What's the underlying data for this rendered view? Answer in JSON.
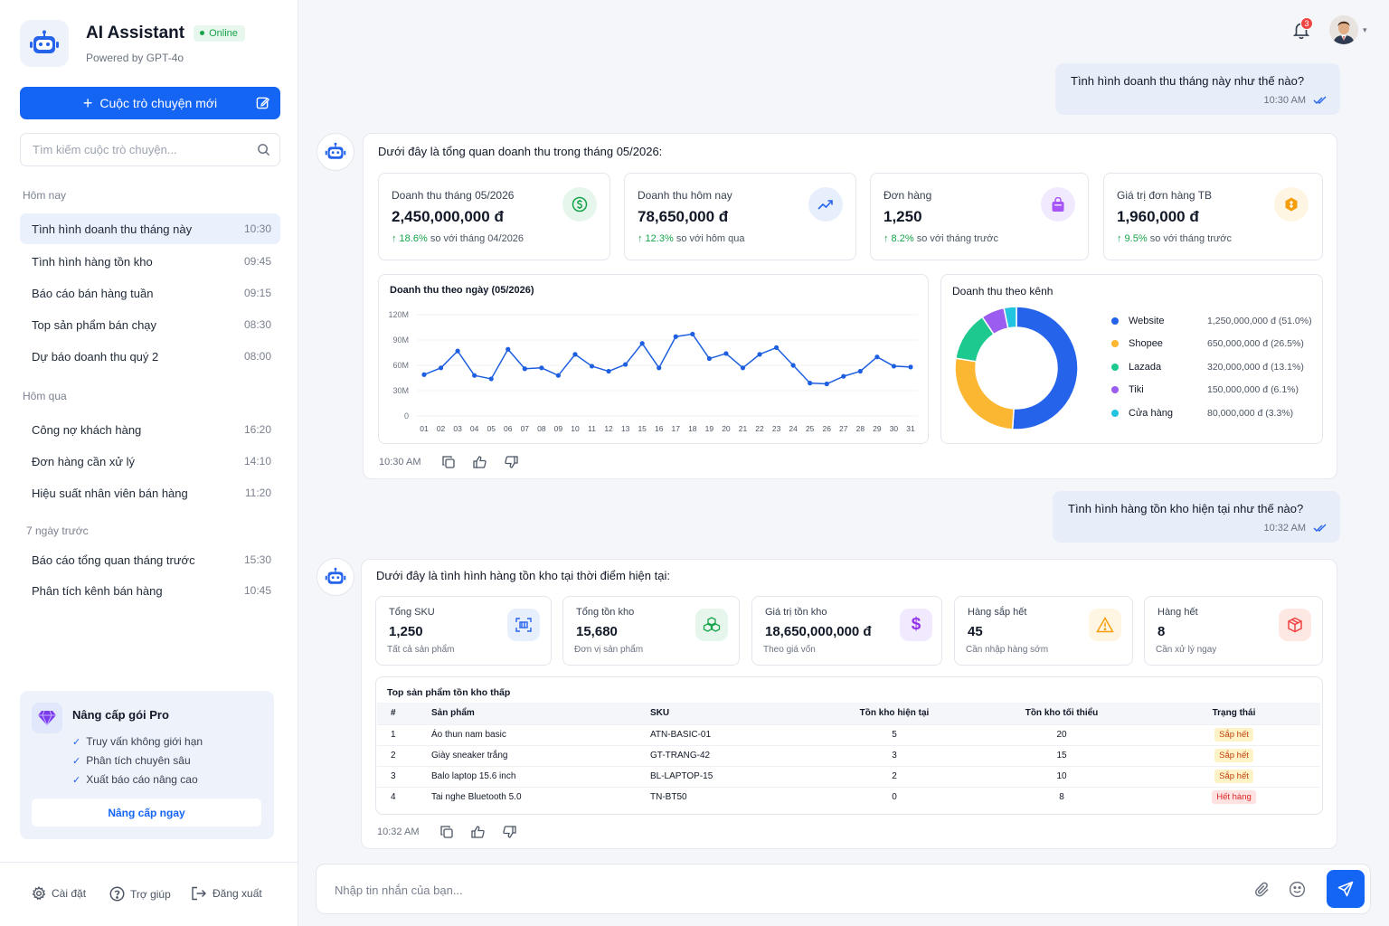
{
  "brand": {
    "title": "AI Assistant",
    "status": "Online",
    "subtitle": "Powered by GPT-4o",
    "icon": "robot-icon"
  },
  "sidebar": {
    "new_chat_label": "Cuộc trò chuyện mới",
    "search_placeholder": "Tìm kiếm cuộc trò chuyện...",
    "groups": [
      {
        "label": "Hôm nay",
        "items": [
          {
            "title": "Tình hình doanh thu tháng này",
            "time": "10:30",
            "active": true
          },
          {
            "title": "Tình hình hàng tồn kho",
            "time": "09:45"
          },
          {
            "title": "Báo cáo bán hàng tuần",
            "time": "09:15"
          },
          {
            "title": "Top sản phẩm bán chạy",
            "time": "08:30"
          },
          {
            "title": "Dự báo doanh thu quý 2",
            "time": "08:00"
          }
        ]
      },
      {
        "label": "Hôm qua",
        "items": [
          {
            "title": "Công nợ khách hàng",
            "time": "16:20"
          },
          {
            "title": "Đơn hàng cần xử lý",
            "time": "14:10"
          },
          {
            "title": "Hiệu suất nhân viên bán hàng",
            "time": "11:20"
          }
        ]
      },
      {
        "label": "7 ngày trước",
        "items": [
          {
            "title": "Báo cáo tổng quan tháng trước",
            "time": "15:30"
          },
          {
            "title": "Phân tích kênh bán hàng",
            "time": "10:45"
          }
        ]
      }
    ],
    "pro": {
      "title": "Nâng cấp gói Pro",
      "features": [
        "Truy vấn không giới hạn",
        "Phân tích chuyên sâu",
        "Xuất báo cáo nâng cao"
      ],
      "button": "Nâng cấp ngay"
    },
    "footer": {
      "settings": "Cài đặt",
      "help": "Trợ giúp",
      "logout": "Đăng xuất"
    }
  },
  "header": {
    "notification_count": "3"
  },
  "messages": {
    "user1": {
      "text": "Tình hình doanh thu tháng này như thế nào?",
      "time": "10:30 AM"
    },
    "bot1": {
      "intro": "Dưới đây là tổng quan doanh thu trong tháng 05/2026:",
      "cards": [
        {
          "label": "Doanh thu tháng 05/2026",
          "value": "2,450,000,000 đ",
          "change": "↑ 18.6%",
          "compare": "so với tháng 04/2026",
          "icon": "dollar-icon",
          "color": "#16a34a"
        },
        {
          "label": "Doanh thu hôm nay",
          "value": "78,650,000 đ",
          "change": "↑ 12.3%",
          "compare": "so với hôm qua",
          "icon": "trend-up-icon",
          "color": "#2563eb"
        },
        {
          "label": "Đơn hàng",
          "value": "1,250",
          "change": "↑ 8.2%",
          "compare": "so với tháng trước",
          "icon": "bag-icon",
          "color": "#9333ea"
        },
        {
          "label": "Giá trị đơn hàng TB",
          "value": "1,960,000 đ",
          "change": "↑ 9.5%",
          "compare": "so với tháng trước",
          "icon": "coin-icon",
          "color": "#f59e0b"
        }
      ],
      "time": "10:30 AM"
    },
    "user2": {
      "text": "Tình hình hàng tồn kho hiện tại như thế nào?",
      "time": "10:32 AM"
    },
    "bot2": {
      "intro": "Dưới đây là tình hình hàng tồn kho tại thời điểm hiện tại:",
      "cards": [
        {
          "label": "Tổng SKU",
          "value": "1,250",
          "sub": "Tất cả sản phẩm",
          "icon": "barcode-icon",
          "color": "#2563eb"
        },
        {
          "label": "Tổng tồn kho",
          "value": "15,680",
          "sub": "Đơn vị sản phẩm",
          "icon": "boxes-icon",
          "color": "#16a34a"
        },
        {
          "label": "Giá trị tồn kho",
          "value": "18,650,000,000 đ",
          "sub": "Theo giá vốn",
          "icon": "dollar-icon",
          "color": "#9333ea"
        },
        {
          "label": "Hàng sắp hết",
          "value": "45",
          "sub": "Cần nhập hàng sớm",
          "icon": "warning-icon",
          "color": "#f59e0b"
        },
        {
          "label": "Hàng hết",
          "value": "8",
          "sub": "Cần xử lý ngay",
          "icon": "box-icon",
          "color": "#ef4444"
        }
      ],
      "table": {
        "title": "Top sản phẩm tồn kho thấp",
        "headers": [
          "#",
          "Sản phẩm",
          "SKU",
          "Tồn kho hiện tại",
          "Tồn kho tối thiểu",
          "Trạng thái"
        ],
        "rows": [
          [
            "1",
            "Áo thun nam basic",
            "ATN-BASIC-01",
            "5",
            "20",
            "Sắp hết"
          ],
          [
            "2",
            "Giày sneaker trắng",
            "GT-TRANG-42",
            "3",
            "15",
            "Sắp hết"
          ],
          [
            "3",
            "Balo laptop 15.6 inch",
            "BL-LAPTOP-15",
            "2",
            "10",
            "Sắp hết"
          ],
          [
            "4",
            "Tai nghe Bluetooth 5.0",
            "TN-BT50",
            "0",
            "8",
            "Hết hàng"
          ]
        ]
      },
      "time": "10:32 AM"
    }
  },
  "composer": {
    "placeholder": "Nhập tin nhắn của bạn..."
  },
  "chart_data": [
    {
      "type": "line",
      "title": "Doanh thu theo ngày (05/2026)",
      "x": [
        "01",
        "02",
        "03",
        "04",
        "05",
        "06",
        "07",
        "08",
        "09",
        "10",
        "11",
        "12",
        "13",
        "15",
        "16",
        "17",
        "18",
        "19",
        "20",
        "21",
        "22",
        "23",
        "24",
        "25",
        "26",
        "27",
        "28",
        "29",
        "30",
        "31"
      ],
      "y_ticks": [
        "0",
        "30M",
        "60M",
        "90M",
        "120M"
      ],
      "ylim": [
        0,
        120
      ],
      "series": [
        {
          "values": [
            49,
            57,
            77,
            48,
            44,
            79,
            56,
            57,
            48,
            73,
            59,
            53,
            61,
            86,
            57,
            94,
            97,
            68,
            74,
            57,
            73,
            81,
            60,
            39,
            38,
            47,
            53,
            70,
            59,
            58
          ],
          "color": "#1d5fe0"
        }
      ],
      "grid": true
    },
    {
      "type": "pie",
      "title": "Doanh thu theo kênh",
      "categories": [
        "Website",
        "Shopee",
        "Lazada",
        "Tiki",
        "Cửa hàng"
      ],
      "values": [
        1250000000,
        650000000,
        320000000,
        150000000,
        80000000
      ],
      "labels": [
        "1,250,000,000 đ (51.0%)",
        "650,000,000 đ (26.5%)",
        "320,000,000 đ (13.1%)",
        "150,000,000 đ (6.1%)",
        "80,000,000 đ (3.3%)"
      ],
      "colors": [
        "#2563eb",
        "#fbb632",
        "#1ec98f",
        "#9b5cf0",
        "#22c4e0"
      ],
      "legend": "right"
    }
  ]
}
